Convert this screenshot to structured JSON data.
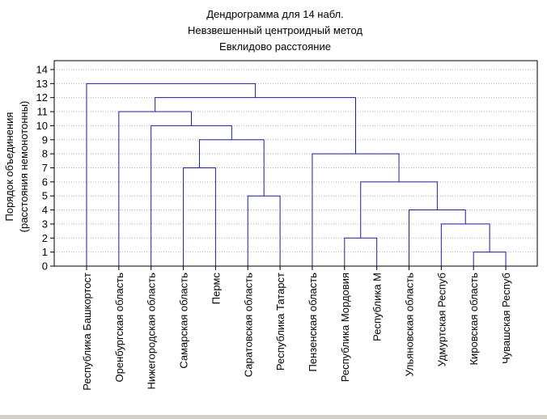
{
  "colors": {
    "background": "#ffffff",
    "window_border": "#d4d0c8",
    "link": "#1e1e9c",
    "grid": "#b4b4b4",
    "axis": "#000000",
    "text": "#000000"
  },
  "chart_data": {
    "type": "dendrogram",
    "title_lines": [
      "Дендрограмма для 14 набл.",
      "Невзвешенный центроидный метод",
      "Евклидово расстояние"
    ],
    "ylabel_lines": [
      "Порядок    объединения",
      "(расстояния немонотонны)"
    ],
    "ylim": [
      0,
      14
    ],
    "yticks": [
      "0",
      "1",
      "2",
      "3",
      "4",
      "5",
      "6",
      "7",
      "8",
      "9",
      "10",
      "11",
      "12",
      "13",
      "14"
    ],
    "grid": "horizontal-dotted",
    "leaves": [
      "Республика Башкортост",
      "Оренбургская область",
      "Нижегородская область",
      "Самарская область",
      "Пермс",
      "Саратовская область",
      "Республика Татарст",
      "Пензенская область",
      "Республика Мордовия",
      "Республика М",
      "Ульяновская область",
      "Удмуртская Респуб",
      "Кировская область",
      "Чувашская Респуб"
    ],
    "merges": [
      {
        "left": 12,
        "right": 13,
        "height": 1
      },
      {
        "left": 8,
        "right": 9,
        "height": 2
      },
      {
        "left": 11,
        "right": "m1",
        "height": 3
      },
      {
        "left": 10,
        "right": "m3",
        "height": 4
      },
      {
        "left": 5,
        "right": 6,
        "height": 5
      },
      {
        "left": "m2",
        "right": "m4",
        "height": 6
      },
      {
        "left": 3,
        "right": 4,
        "height": 7
      },
      {
        "left": 7,
        "right": "m6",
        "height": 8
      },
      {
        "left": "m7",
        "right": "m5",
        "height": 9
      },
      {
        "left": 2,
        "right": "m9",
        "height": 10
      },
      {
        "left": 1,
        "right": "m10",
        "height": 11
      },
      {
        "left": "m11",
        "right": "m8",
        "height": 12
      },
      {
        "left": 0,
        "right": "m12",
        "height": 13
      }
    ]
  }
}
